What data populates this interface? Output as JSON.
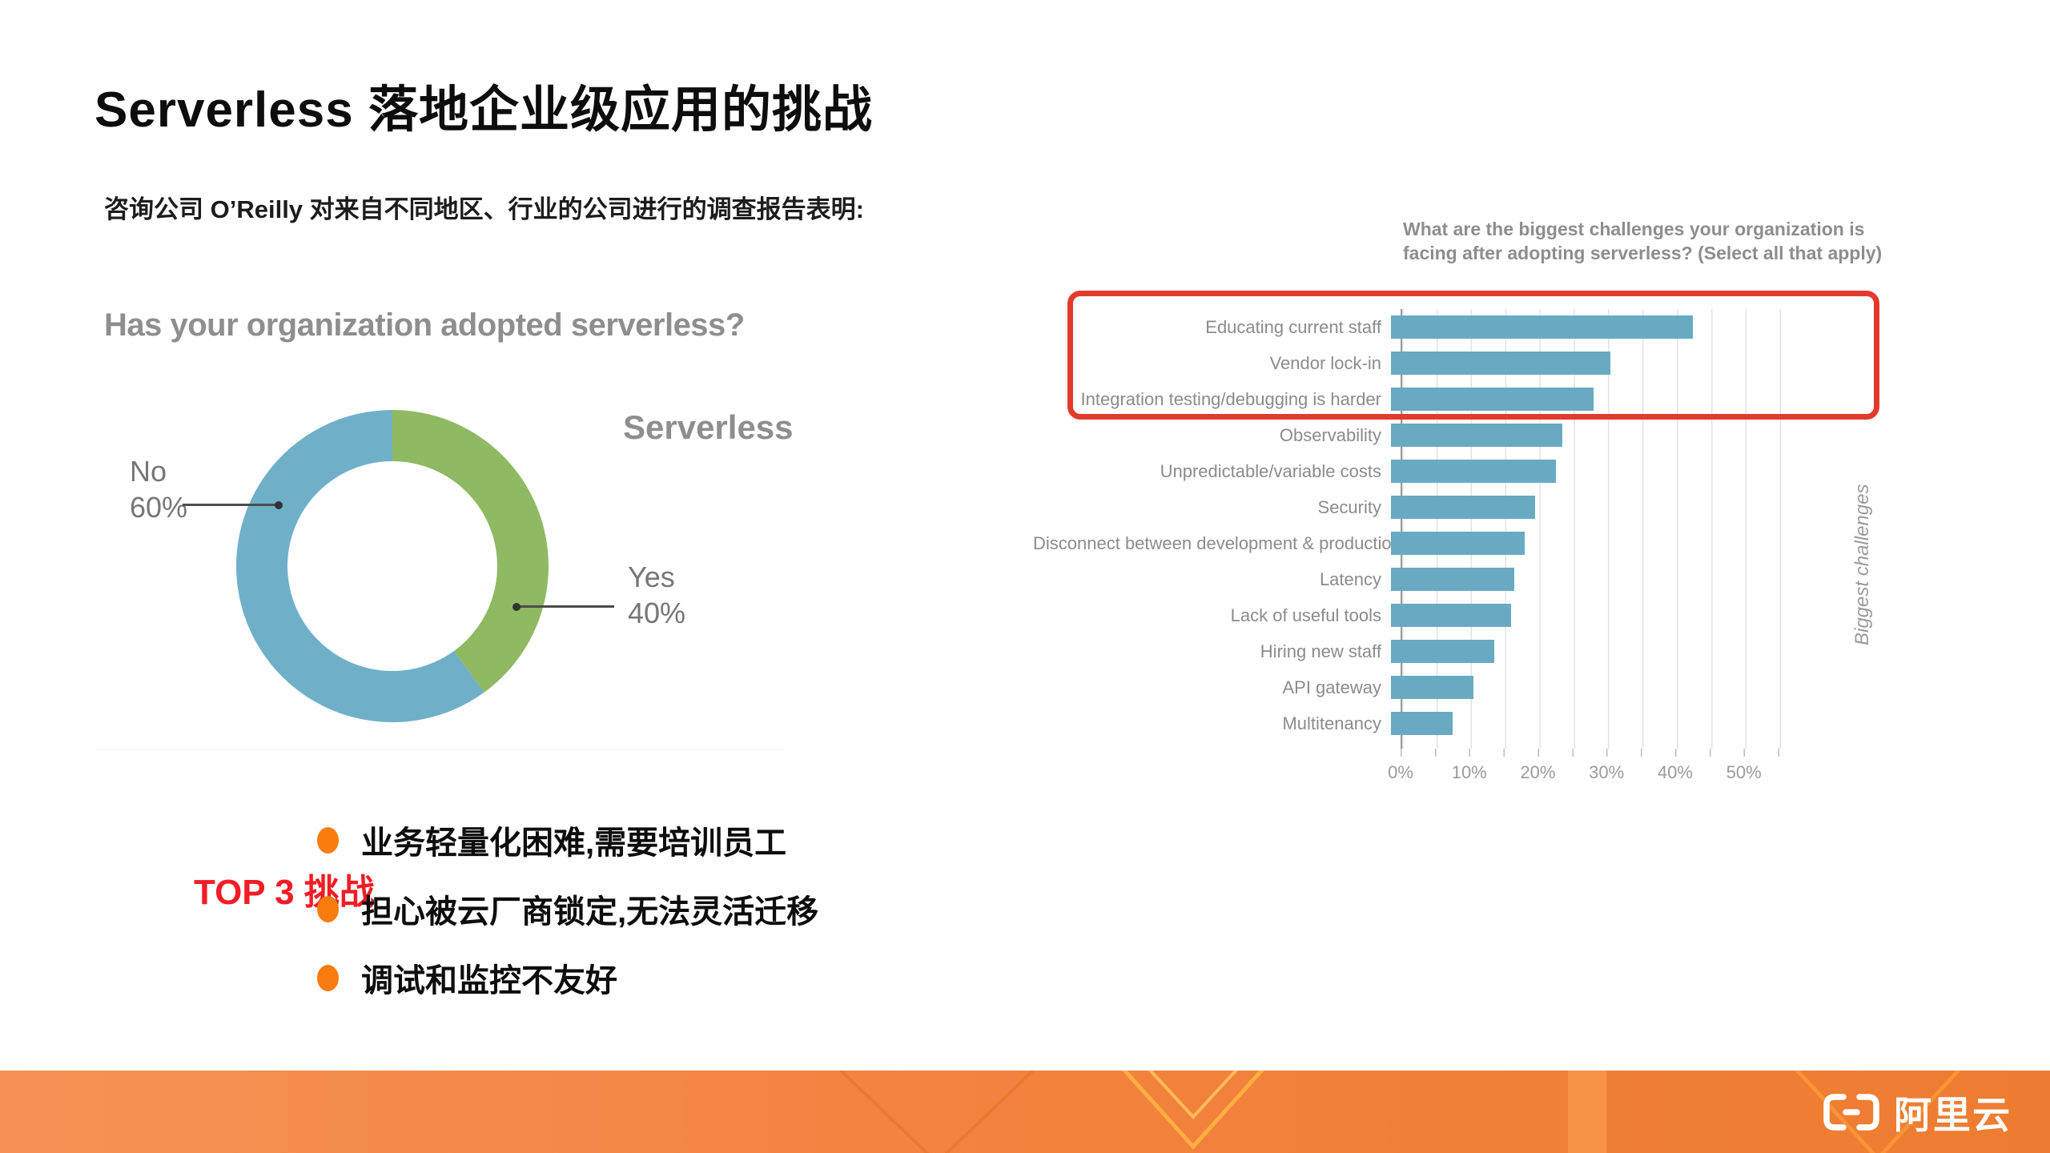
{
  "slide": {
    "title": "Serverless 落地企业级应用的挑战",
    "subtitle": "咨询公司 O’Reilly  对来自不同地区、行业的公司进行的调查报告表明:"
  },
  "colors": {
    "bar_blue": "#68aac2",
    "donut_yes_green": "#8fb962",
    "donut_no_blue": "#6fb0c8",
    "highlight_red": "#e23a2d",
    "top3_red": "#f31c25",
    "bullet_orange": "#f87d0e",
    "footer_orange": "#ef7e33",
    "chart_gray": "#8e8e8e"
  },
  "chart_data": [
    {
      "type": "pie",
      "donut": true,
      "title": "Has your organization adopted serverless?",
      "legend_label": "Serverless",
      "segments": [
        {
          "label": "Yes",
          "value": 40,
          "color": "#8fb962"
        },
        {
          "label": "No",
          "value": 60,
          "color": "#6fb0c8"
        }
      ],
      "callouts": [
        {
          "line1": "No",
          "line2": "60%"
        },
        {
          "line1": "Yes",
          "line2": "40%"
        }
      ]
    },
    {
      "type": "bar",
      "orientation": "horizontal",
      "title_line1": "What are the biggest challenges your organization is",
      "title_line2": "facing after adopting serverless? (Select all that apply)",
      "side_label": "Biggest challenges",
      "categories": [
        "Educating current staff",
        "Vendor lock-in",
        "Integration testing/debugging is harder",
        "Observability",
        "Unpredictable/variable costs",
        "Security",
        "Disconnect between development & production",
        "Latency",
        "Lack of useful tools",
        "Hiring new staff",
        "API gateway",
        "Multitenancy"
      ],
      "values": [
        44,
        32,
        29.5,
        25,
        24,
        21,
        19.5,
        18,
        17.5,
        15,
        12,
        9
      ],
      "axis": {
        "max": 57.5,
        "ticks": [
          0,
          10,
          20,
          30,
          40,
          50
        ],
        "unit": "%"
      },
      "highlight_top_n": 3
    }
  ],
  "top3": {
    "heading": "TOP 3 挑战",
    "bullets": [
      "业务轻量化困难,需要培训员工",
      "担心被云厂商锁定,无法灵活迁移",
      "调试和监控不友好"
    ]
  },
  "footer": {
    "brand": "阿里云"
  }
}
